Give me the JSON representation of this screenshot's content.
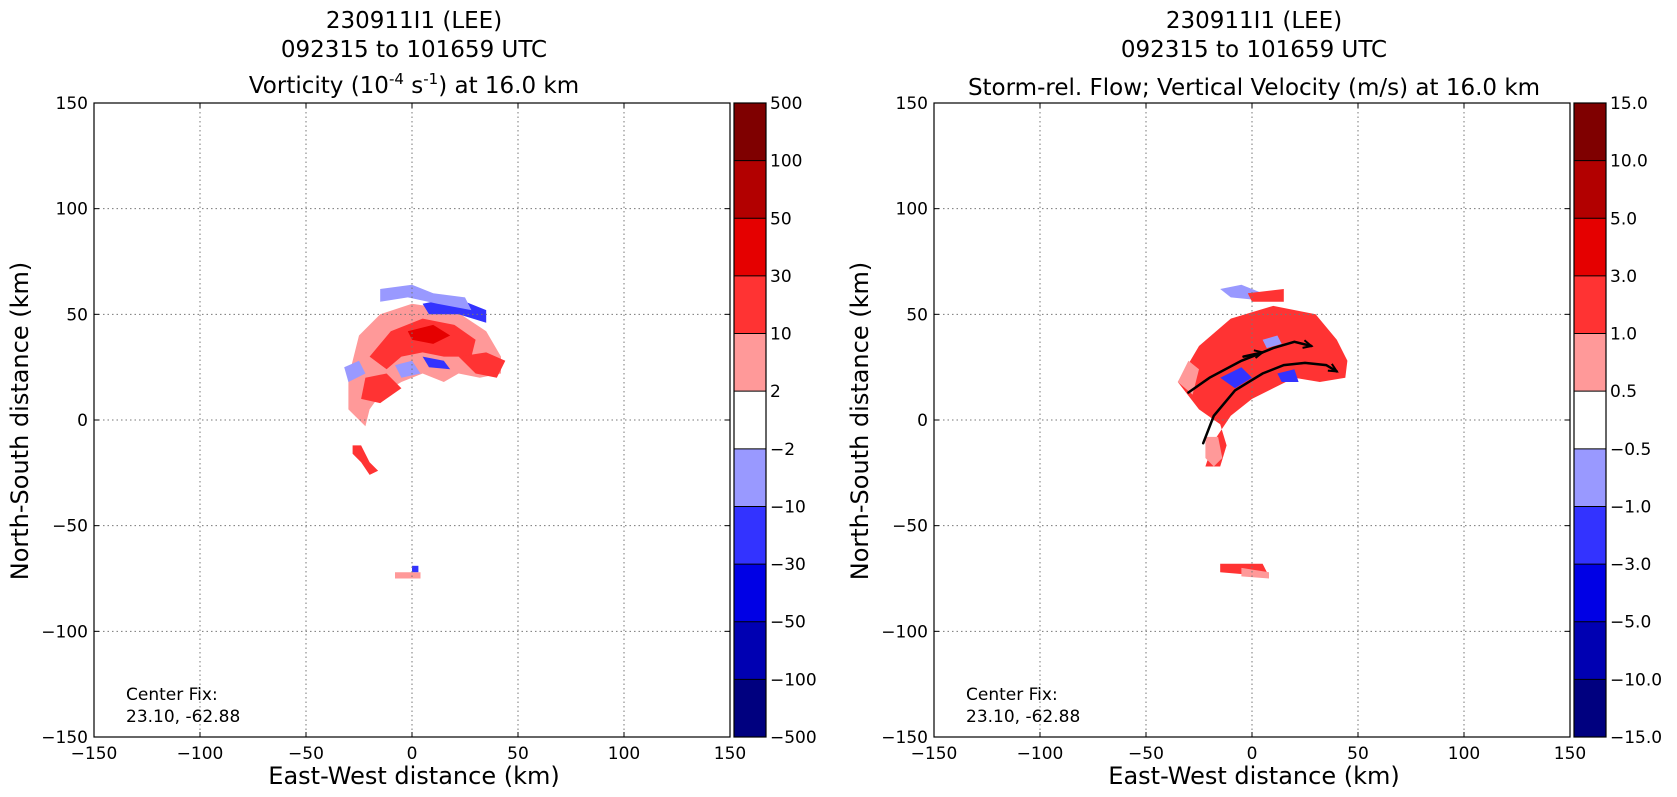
{
  "chart_data": [
    {
      "type": "heatmap",
      "title_lines": [
        "230911I1 (LEE)",
        "092315 to 101659 UTC"
      ],
      "title_line3_parts": {
        "a": "Vorticity (10",
        "sup1": "-4",
        "b": " s",
        "sup2": "-1",
        "c": ") at 16.0 km"
      },
      "xlabel": "East-West distance (km)",
      "ylabel": "North-South distance (km)",
      "xlim": [
        -150,
        150
      ],
      "ylim": [
        -150,
        150
      ],
      "xticks": [
        "−150",
        "−100",
        "−50",
        "0",
        "50",
        "100",
        "150"
      ],
      "yticks": [
        "150",
        "100",
        "50",
        "0",
        "−50",
        "−100",
        "−150"
      ],
      "grid": true,
      "colorbar_labels": [
        "500",
        "100",
        "50",
        "30",
        "10",
        "2",
        "−2",
        "−10",
        "−30",
        "−50",
        "−100",
        "−500"
      ],
      "annotation": [
        "Center Fix:",
        "23.10, -62.88"
      ],
      "regions": [
        {
          "color": "#ff9999",
          "pts": [
            [
              -30,
              20
            ],
            [
              -25,
              40
            ],
            [
              -15,
              50
            ],
            [
              0,
              55
            ],
            [
              20,
              52
            ],
            [
              35,
              42
            ],
            [
              42,
              30
            ],
            [
              42,
              22
            ],
            [
              32,
              20
            ],
            [
              22,
              22
            ],
            [
              15,
              18
            ],
            [
              5,
              22
            ],
            [
              -5,
              18
            ],
            [
              -15,
              12
            ],
            [
              -20,
              5
            ],
            [
              -22,
              -3
            ],
            [
              -30,
              5
            ]
          ]
        },
        {
          "color": "#ff3333",
          "pts": [
            [
              -20,
              30
            ],
            [
              -10,
              42
            ],
            [
              5,
              48
            ],
            [
              20,
              45
            ],
            [
              30,
              38
            ],
            [
              28,
              30
            ],
            [
              15,
              30
            ],
            [
              5,
              32
            ],
            [
              -5,
              30
            ],
            [
              -12,
              24
            ]
          ]
        },
        {
          "color": "#ff3333",
          "pts": [
            [
              -22,
              20
            ],
            [
              -12,
              22
            ],
            [
              -5,
              15
            ],
            [
              -15,
              8
            ],
            [
              -24,
              10
            ]
          ]
        },
        {
          "color": "#e50000",
          "pts": [
            [
              -2,
              42
            ],
            [
              10,
              45
            ],
            [
              18,
              40
            ],
            [
              10,
              36
            ],
            [
              0,
              38
            ]
          ]
        },
        {
          "color": "#ff3333",
          "pts": [
            [
              22,
              30
            ],
            [
              35,
              32
            ],
            [
              44,
              28
            ],
            [
              40,
              20
            ],
            [
              30,
              22
            ]
          ]
        },
        {
          "color": "#9999ff",
          "pts": [
            [
              -32,
              25
            ],
            [
              -25,
              28
            ],
            [
              -22,
              22
            ],
            [
              -30,
              18
            ]
          ]
        },
        {
          "color": "#3333ff",
          "pts": [
            [
              5,
              55
            ],
            [
              20,
              58
            ],
            [
              35,
              52
            ],
            [
              35,
              46
            ],
            [
              22,
              50
            ],
            [
              8,
              50
            ]
          ]
        },
        {
          "color": "#9999ff",
          "pts": [
            [
              -15,
              62
            ],
            [
              0,
              64
            ],
            [
              10,
              60
            ],
            [
              25,
              58
            ],
            [
              28,
              52
            ],
            [
              12,
              55
            ],
            [
              -2,
              58
            ],
            [
              -15,
              56
            ]
          ]
        },
        {
          "color": "#3333ff",
          "pts": [
            [
              5,
              30
            ],
            [
              15,
              28
            ],
            [
              18,
              24
            ],
            [
              8,
              25
            ]
          ]
        },
        {
          "color": "#9999ff",
          "pts": [
            [
              -8,
              26
            ],
            [
              0,
              28
            ],
            [
              4,
              22
            ],
            [
              -5,
              20
            ]
          ]
        },
        {
          "color": "#ff3333",
          "pts": [
            [
              -28,
              -12
            ],
            [
              -24,
              -12
            ],
            [
              -20,
              -20
            ],
            [
              -16,
              -24
            ],
            [
              -20,
              -26
            ],
            [
              -24,
              -20
            ],
            [
              -28,
              -16
            ]
          ]
        },
        {
          "color": "#ff9999",
          "pts": [
            [
              -8,
              -72
            ],
            [
              4,
              -72
            ],
            [
              4,
              -75
            ],
            [
              -8,
              -75
            ]
          ]
        },
        {
          "color": "#3333ff",
          "pts": [
            [
              0,
              -69
            ],
            [
              3,
              -69
            ],
            [
              3,
              -72
            ],
            [
              0,
              -72
            ]
          ]
        }
      ],
      "streamlines": []
    },
    {
      "type": "heatmap",
      "title_lines": [
        "230911I1 (LEE)",
        "092315 to 101659 UTC"
      ],
      "title_line3": "Storm-rel. Flow; Vertical Velocity (m/s) at 16.0 km",
      "xlabel": "East-West distance (km)",
      "ylabel": "North-South distance (km)",
      "xlim": [
        -150,
        150
      ],
      "ylim": [
        -150,
        150
      ],
      "xticks": [
        "−150",
        "−100",
        "−50",
        "0",
        "50",
        "100",
        "150"
      ],
      "yticks": [
        "150",
        "100",
        "50",
        "0",
        "−50",
        "−100",
        "−150"
      ],
      "grid": true,
      "colorbar_labels": [
        "15.0",
        "10.0",
        "5.0",
        "3.0",
        "1.0",
        "0.5",
        "−0.5",
        "−1.0",
        "−3.0",
        "−5.0",
        "−10.0",
        "−15.0"
      ],
      "annotation": [
        "Center Fix:",
        "23.10, -62.88"
      ],
      "regions": [
        {
          "color": "#ff3333",
          "pts": [
            [
              -35,
              18
            ],
            [
              -25,
              35
            ],
            [
              -10,
              48
            ],
            [
              10,
              54
            ],
            [
              30,
              50
            ],
            [
              40,
              38
            ],
            [
              45,
              28
            ],
            [
              44,
              20
            ],
            [
              32,
              18
            ],
            [
              20,
              20
            ],
            [
              10,
              15
            ],
            [
              0,
              10
            ],
            [
              -10,
              2
            ],
            [
              -18,
              -10
            ],
            [
              -22,
              -22
            ],
            [
              -15,
              -22
            ],
            [
              -12,
              -12
            ],
            [
              -15,
              -2
            ],
            [
              -25,
              5
            ]
          ]
        },
        {
          "color": "#ff9999",
          "pts": [
            [
              -35,
              18
            ],
            [
              -30,
              28
            ],
            [
              -25,
              24
            ],
            [
              -28,
              12
            ]
          ]
        },
        {
          "color": "#ff9999",
          "pts": [
            [
              -22,
              -8
            ],
            [
              -16,
              -8
            ],
            [
              -14,
              -18
            ],
            [
              -18,
              -22
            ],
            [
              -22,
              -18
            ]
          ]
        },
        {
          "color": "#9999ff",
          "pts": [
            [
              -15,
              62
            ],
            [
              -5,
              64
            ],
            [
              5,
              60
            ],
            [
              0,
              57
            ],
            [
              -10,
              58
            ]
          ]
        },
        {
          "color": "#ff3333",
          "pts": [
            [
              -2,
              60
            ],
            [
              15,
              62
            ],
            [
              15,
              56
            ],
            [
              0,
              56
            ]
          ]
        },
        {
          "color": "#3333ff",
          "pts": [
            [
              -15,
              20
            ],
            [
              -5,
              25
            ],
            [
              0,
              20
            ],
            [
              -8,
              15
            ]
          ]
        },
        {
          "color": "#3333ff",
          "pts": [
            [
              12,
              22
            ],
            [
              20,
              24
            ],
            [
              22,
              18
            ],
            [
              14,
              18
            ]
          ]
        },
        {
          "color": "#9999ff",
          "pts": [
            [
              5,
              38
            ],
            [
              12,
              40
            ],
            [
              14,
              36
            ],
            [
              7,
              34
            ]
          ]
        },
        {
          "color": "#ff3333",
          "pts": [
            [
              -15,
              -68
            ],
            [
              5,
              -68
            ],
            [
              8,
              -74
            ],
            [
              -15,
              -72
            ]
          ]
        },
        {
          "color": "#ff9999",
          "pts": [
            [
              -5,
              -70
            ],
            [
              8,
              -72
            ],
            [
              8,
              -75
            ],
            [
              -5,
              -74
            ]
          ]
        }
      ],
      "streamlines": [
        [
          [
            -30,
            13
          ],
          [
            -20,
            20
          ],
          [
            -5,
            28
          ],
          [
            10,
            34
          ],
          [
            20,
            37
          ],
          [
            28,
            35
          ]
        ],
        [
          [
            -23,
            -11
          ],
          [
            -18,
            2
          ],
          [
            -8,
            14
          ],
          [
            5,
            22
          ],
          [
            15,
            26
          ],
          [
            25,
            27
          ],
          [
            35,
            26
          ],
          [
            40,
            23
          ]
        ],
        [
          [
            -4,
            30
          ],
          [
            5,
            32
          ]
        ]
      ]
    }
  ],
  "colorbar_colors": [
    "#7f0000",
    "#b20000",
    "#e50000",
    "#ff3333",
    "#ff9999",
    "#ffffff",
    "#9999ff",
    "#3333ff",
    "#0000e5",
    "#0000b2",
    "#00007f"
  ]
}
